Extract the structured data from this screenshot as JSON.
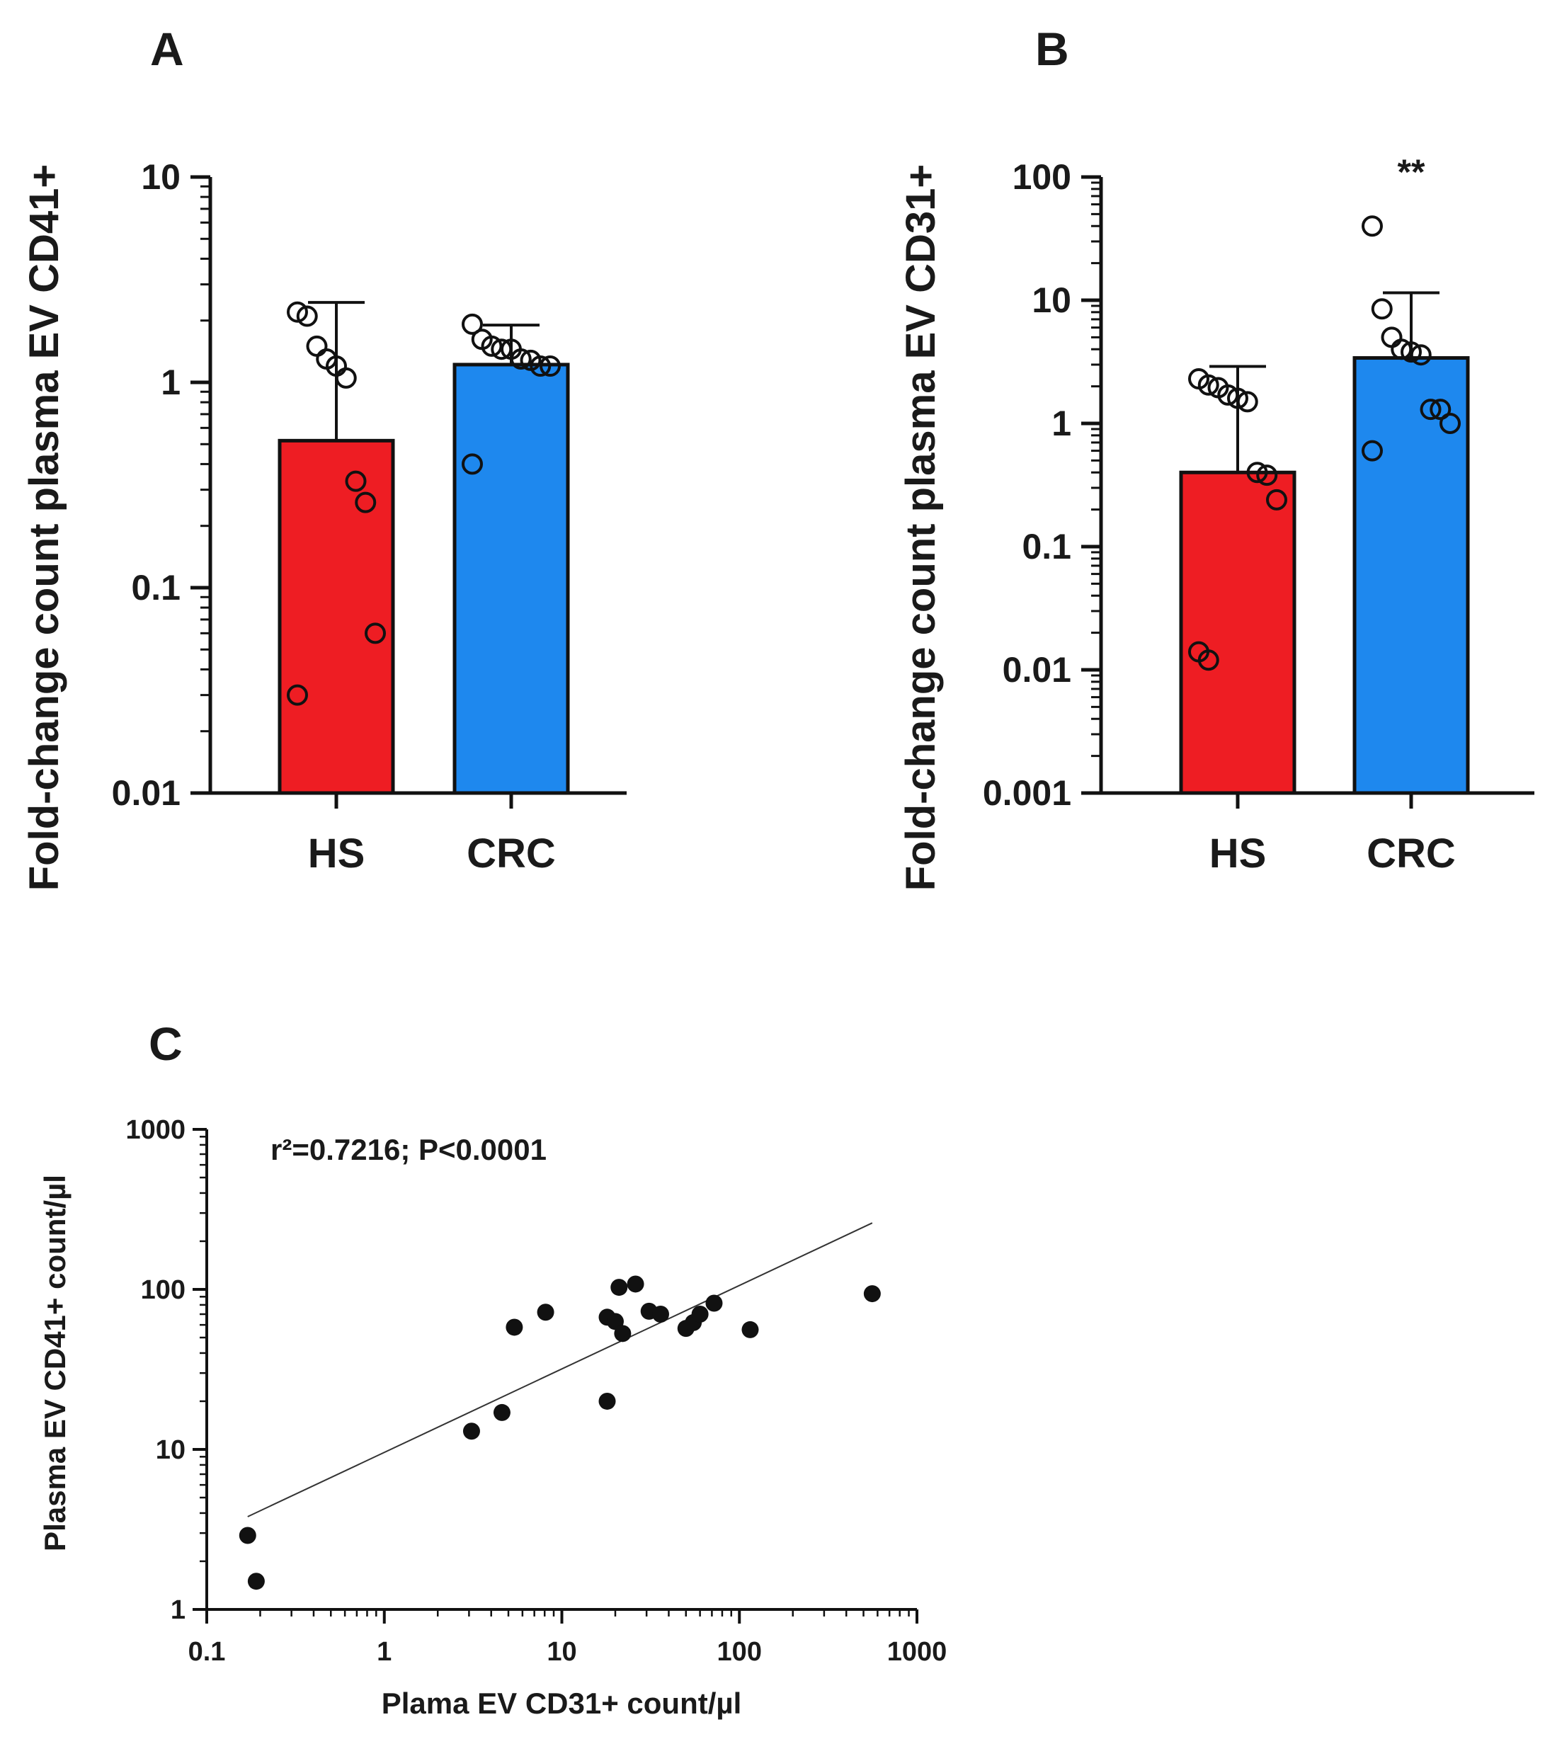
{
  "chart_data": [
    {
      "id": "A",
      "type": "bar",
      "panel_label": "A",
      "title": "",
      "ylabel": "Fold-change count plasma EV CD41+",
      "xlabel": "",
      "yscale": "log",
      "ylim": [
        0.01,
        10
      ],
      "ytick_values": [
        0.01,
        0.1,
        1,
        10
      ],
      "ytick_labels": [
        "0.01",
        "0.1",
        "1",
        "10"
      ],
      "categories": [
        "HS",
        "CRC"
      ],
      "values": [
        0.52,
        1.22
      ],
      "error_upper": [
        2.45,
        1.9
      ],
      "bar_colors": [
        "#ee1d23",
        "#1e88ee"
      ],
      "points": [
        [
          2.2,
          2.1,
          1.5,
          1.3,
          1.2,
          1.05,
          0.33,
          0.26,
          0.06,
          0.03
        ],
        [
          1.92,
          1.62,
          1.5,
          1.45,
          1.45,
          1.3,
          1.28,
          1.2,
          1.2,
          0.4
        ]
      ],
      "significance": [
        "",
        ""
      ]
    },
    {
      "id": "B",
      "type": "bar",
      "panel_label": "B",
      "title": "",
      "ylabel": "Fold-change count plasma EV CD31+",
      "xlabel": "",
      "yscale": "log",
      "ylim": [
        0.001,
        100
      ],
      "ytick_values": [
        0.001,
        0.01,
        0.1,
        1,
        10,
        100
      ],
      "ytick_labels": [
        "0.001",
        "0.01",
        "0.1",
        "1",
        "10",
        "100"
      ],
      "categories": [
        "HS",
        "CRC"
      ],
      "values": [
        0.4,
        3.4
      ],
      "error_upper": [
        2.9,
        11.5
      ],
      "bar_colors": [
        "#ee1d23",
        "#1e88ee"
      ],
      "points": [
        [
          2.3,
          2.05,
          1.95,
          1.7,
          1.6,
          1.5,
          0.4,
          0.38,
          0.24,
          0.014,
          0.012
        ],
        [
          40,
          8.5,
          5,
          4,
          3.8,
          3.6,
          1.3,
          1.3,
          1.0,
          0.6
        ]
      ],
      "significance": [
        "",
        "**"
      ]
    },
    {
      "id": "C",
      "type": "scatter",
      "panel_label": "C",
      "title": "",
      "annotation": "r²=0.7216; P<0.0001",
      "xlabel": "Plama EV CD31+ count/µl",
      "ylabel": "Plasma EV CD41+ count/µl",
      "xscale": "log",
      "yscale": "log",
      "xlim": [
        0.1,
        1000
      ],
      "ylim": [
        1,
        1000
      ],
      "xtick_values": [
        0.1,
        1,
        10,
        100,
        1000
      ],
      "xtick_labels": [
        "0.1",
        "1",
        "10",
        "100",
        "1000"
      ],
      "ytick_values": [
        1,
        10,
        100,
        1000
      ],
      "ytick_labels": [
        "1",
        "10",
        "100",
        "1000"
      ],
      "x": [
        0.17,
        0.19,
        3.1,
        4.6,
        5.4,
        8.1,
        18,
        18,
        20,
        21,
        22,
        26,
        31,
        36,
        50,
        55,
        60,
        72,
        115,
        560
      ],
      "y": [
        2.9,
        1.5,
        13,
        17,
        58,
        72,
        20,
        67,
        63,
        103,
        53,
        108,
        73,
        70,
        57,
        62,
        70,
        82,
        56,
        94
      ],
      "fit_line": {
        "x_start": 0.17,
        "y_start": 3.8,
        "x_end": 560,
        "y_end": 260
      }
    }
  ]
}
